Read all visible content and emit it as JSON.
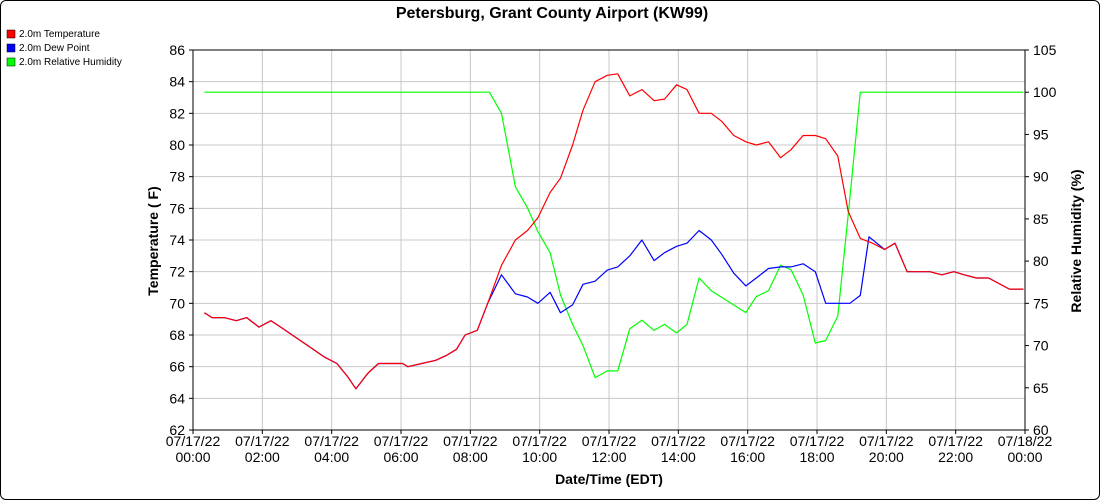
{
  "chart_data": {
    "type": "line",
    "title": "Petersburg, Grant County Airport (KW99)",
    "xlabel": "Date/Time (EDT)",
    "ylabel_left": "Temperature ( F)",
    "ylabel_right": "Relative Humidity (%)",
    "ylim_left": [
      62,
      86
    ],
    "ylim_right": [
      60,
      105
    ],
    "yticks_left": [
      62,
      64,
      66,
      68,
      70,
      72,
      74,
      76,
      78,
      80,
      82,
      84,
      86
    ],
    "yticks_right": [
      60,
      65,
      70,
      75,
      80,
      85,
      90,
      95,
      100,
      105
    ],
    "xlim_hours": [
      0,
      24
    ],
    "xticks": [
      {
        "hour": 0,
        "date": "07/17/22",
        "time": "00:00"
      },
      {
        "hour": 2,
        "date": "07/17/22",
        "time": "02:00"
      },
      {
        "hour": 4,
        "date": "07/17/22",
        "time": "04:00"
      },
      {
        "hour": 6,
        "date": "07/17/22",
        "time": "06:00"
      },
      {
        "hour": 8,
        "date": "07/17/22",
        "time": "08:00"
      },
      {
        "hour": 10,
        "date": "07/17/22",
        "time": "10:00"
      },
      {
        "hour": 12,
        "date": "07/17/22",
        "time": "12:00"
      },
      {
        "hour": 14,
        "date": "07/17/22",
        "time": "14:00"
      },
      {
        "hour": 16,
        "date": "07/17/22",
        "time": "16:00"
      },
      {
        "hour": 18,
        "date": "07/17/22",
        "time": "18:00"
      },
      {
        "hour": 20,
        "date": "07/17/22",
        "time": "20:00"
      },
      {
        "hour": 22,
        "date": "07/17/22",
        "time": "22:00"
      },
      {
        "hour": 24,
        "date": "07/18/22",
        "time": "00:00"
      }
    ],
    "grid": true,
    "legend_position": "top-left",
    "series": [
      {
        "name": "2.0m Temperature",
        "color": "#ff0000",
        "axis": "left",
        "points": [
          [
            0.33,
            69.4
          ],
          [
            0.55,
            69.1
          ],
          [
            0.9,
            69.1
          ],
          [
            1.25,
            68.9
          ],
          [
            1.55,
            69.1
          ],
          [
            1.9,
            68.5
          ],
          [
            2.25,
            68.9
          ],
          [
            2.6,
            68.4
          ],
          [
            3.0,
            67.8
          ],
          [
            3.4,
            67.2
          ],
          [
            3.8,
            66.6
          ],
          [
            4.15,
            66.2
          ],
          [
            4.45,
            65.4
          ],
          [
            4.7,
            64.6
          ],
          [
            5.05,
            65.6
          ],
          [
            5.35,
            66.2
          ],
          [
            5.7,
            66.2
          ],
          [
            6.05,
            66.2
          ],
          [
            6.2,
            66.0
          ],
          [
            6.6,
            66.2
          ],
          [
            7.0,
            66.4
          ],
          [
            7.3,
            66.7
          ],
          [
            7.6,
            67.1
          ],
          [
            7.85,
            68.0
          ],
          [
            8.2,
            68.3
          ],
          [
            8.5,
            70.0
          ],
          [
            8.9,
            72.4
          ],
          [
            9.3,
            74.0
          ],
          [
            9.65,
            74.6
          ],
          [
            9.95,
            75.4
          ],
          [
            10.3,
            77.0
          ],
          [
            10.6,
            77.9
          ],
          [
            10.95,
            80.0
          ],
          [
            11.25,
            82.2
          ],
          [
            11.6,
            84.0
          ],
          [
            11.95,
            84.4
          ],
          [
            12.25,
            84.5
          ],
          [
            12.6,
            83.1
          ],
          [
            12.95,
            83.5
          ],
          [
            13.3,
            82.8
          ],
          [
            13.6,
            82.9
          ],
          [
            13.95,
            83.8
          ],
          [
            14.25,
            83.5
          ],
          [
            14.6,
            82.0
          ],
          [
            14.95,
            82.0
          ],
          [
            15.25,
            81.5
          ],
          [
            15.6,
            80.6
          ],
          [
            15.95,
            80.2
          ],
          [
            16.25,
            80.0
          ],
          [
            16.6,
            80.2
          ],
          [
            16.95,
            79.2
          ],
          [
            17.25,
            79.7
          ],
          [
            17.6,
            80.6
          ],
          [
            17.95,
            80.6
          ],
          [
            18.25,
            80.4
          ],
          [
            18.6,
            79.3
          ],
          [
            18.9,
            75.8
          ],
          [
            19.25,
            74.1
          ],
          [
            19.6,
            73.8
          ],
          [
            19.95,
            73.4
          ],
          [
            20.25,
            73.8
          ],
          [
            20.6,
            72.0
          ],
          [
            20.95,
            72.0
          ],
          [
            21.25,
            72.0
          ],
          [
            21.6,
            71.8
          ],
          [
            21.95,
            72.0
          ],
          [
            22.25,
            71.8
          ],
          [
            22.6,
            71.6
          ],
          [
            22.95,
            71.6
          ],
          [
            23.55,
            70.9
          ],
          [
            23.95,
            70.9
          ]
        ]
      },
      {
        "name": "2.0m Dew Point",
        "color": "#0000ff",
        "axis": "left",
        "points": [
          [
            0.33,
            69.4
          ],
          [
            0.55,
            69.1
          ],
          [
            0.9,
            69.1
          ],
          [
            1.25,
            68.9
          ],
          [
            1.55,
            69.1
          ],
          [
            1.9,
            68.5
          ],
          [
            2.25,
            68.9
          ],
          [
            2.6,
            68.4
          ],
          [
            3.0,
            67.8
          ],
          [
            3.4,
            67.2
          ],
          [
            3.8,
            66.6
          ],
          [
            4.15,
            66.2
          ],
          [
            4.45,
            65.4
          ],
          [
            4.7,
            64.6
          ],
          [
            5.05,
            65.6
          ],
          [
            5.35,
            66.2
          ],
          [
            5.7,
            66.2
          ],
          [
            6.05,
            66.2
          ],
          [
            6.2,
            66.0
          ],
          [
            6.6,
            66.2
          ],
          [
            7.0,
            66.4
          ],
          [
            7.3,
            66.7
          ],
          [
            7.6,
            67.1
          ],
          [
            7.85,
            68.0
          ],
          [
            8.2,
            68.3
          ],
          [
            8.5,
            70.0
          ],
          [
            8.9,
            71.8
          ],
          [
            9.3,
            70.6
          ],
          [
            9.65,
            70.4
          ],
          [
            9.95,
            70.0
          ],
          [
            10.3,
            70.7
          ],
          [
            10.6,
            69.4
          ],
          [
            10.95,
            69.9
          ],
          [
            11.25,
            71.2
          ],
          [
            11.6,
            71.4
          ],
          [
            11.95,
            72.1
          ],
          [
            12.25,
            72.3
          ],
          [
            12.6,
            73.0
          ],
          [
            12.95,
            74.0
          ],
          [
            13.3,
            72.7
          ],
          [
            13.6,
            73.2
          ],
          [
            13.95,
            73.6
          ],
          [
            14.25,
            73.8
          ],
          [
            14.6,
            74.6
          ],
          [
            14.95,
            74.0
          ],
          [
            15.25,
            73.1
          ],
          [
            15.6,
            71.9
          ],
          [
            15.95,
            71.1
          ],
          [
            16.25,
            71.6
          ],
          [
            16.6,
            72.2
          ],
          [
            16.95,
            72.3
          ],
          [
            17.25,
            72.3
          ],
          [
            17.6,
            72.5
          ],
          [
            17.95,
            72.0
          ],
          [
            18.25,
            70.0
          ],
          [
            18.6,
            70.0
          ],
          [
            18.95,
            70.0
          ],
          [
            19.25,
            70.5
          ],
          [
            19.5,
            74.2
          ],
          [
            19.95,
            73.4
          ],
          [
            20.25,
            73.8
          ],
          [
            20.6,
            72.0
          ],
          [
            20.95,
            72.0
          ],
          [
            21.25,
            72.0
          ],
          [
            21.6,
            71.8
          ],
          [
            21.95,
            72.0
          ],
          [
            22.25,
            71.8
          ],
          [
            22.6,
            71.6
          ],
          [
            22.95,
            71.6
          ],
          [
            23.55,
            70.9
          ],
          [
            23.95,
            70.9
          ]
        ]
      },
      {
        "name": "2.0m Relative Humidity",
        "color": "#00ff00",
        "axis": "right",
        "points": [
          [
            0.33,
            100.0
          ],
          [
            8.55,
            100.0
          ],
          [
            8.9,
            97.5
          ],
          [
            9.3,
            88.8
          ],
          [
            9.65,
            86.3
          ],
          [
            9.95,
            83.5
          ],
          [
            10.3,
            81.0
          ],
          [
            10.6,
            76.0
          ],
          [
            10.95,
            72.5
          ],
          [
            11.25,
            70.0
          ],
          [
            11.6,
            66.2
          ],
          [
            11.95,
            67.0
          ],
          [
            12.25,
            67.0
          ],
          [
            12.6,
            72.0
          ],
          [
            12.95,
            73.0
          ],
          [
            13.3,
            71.8
          ],
          [
            13.6,
            72.5
          ],
          [
            13.95,
            71.5
          ],
          [
            14.25,
            72.5
          ],
          [
            14.6,
            78.0
          ],
          [
            14.95,
            76.5
          ],
          [
            15.25,
            75.7
          ],
          [
            15.6,
            74.8
          ],
          [
            15.95,
            73.9
          ],
          [
            16.25,
            75.8
          ],
          [
            16.6,
            76.5
          ],
          [
            16.95,
            79.5
          ],
          [
            17.25,
            79.0
          ],
          [
            17.6,
            76.0
          ],
          [
            17.95,
            70.3
          ],
          [
            18.25,
            70.6
          ],
          [
            18.6,
            73.5
          ],
          [
            18.9,
            85.5
          ],
          [
            19.25,
            100.0
          ],
          [
            23.95,
            100.0
          ]
        ]
      }
    ]
  }
}
